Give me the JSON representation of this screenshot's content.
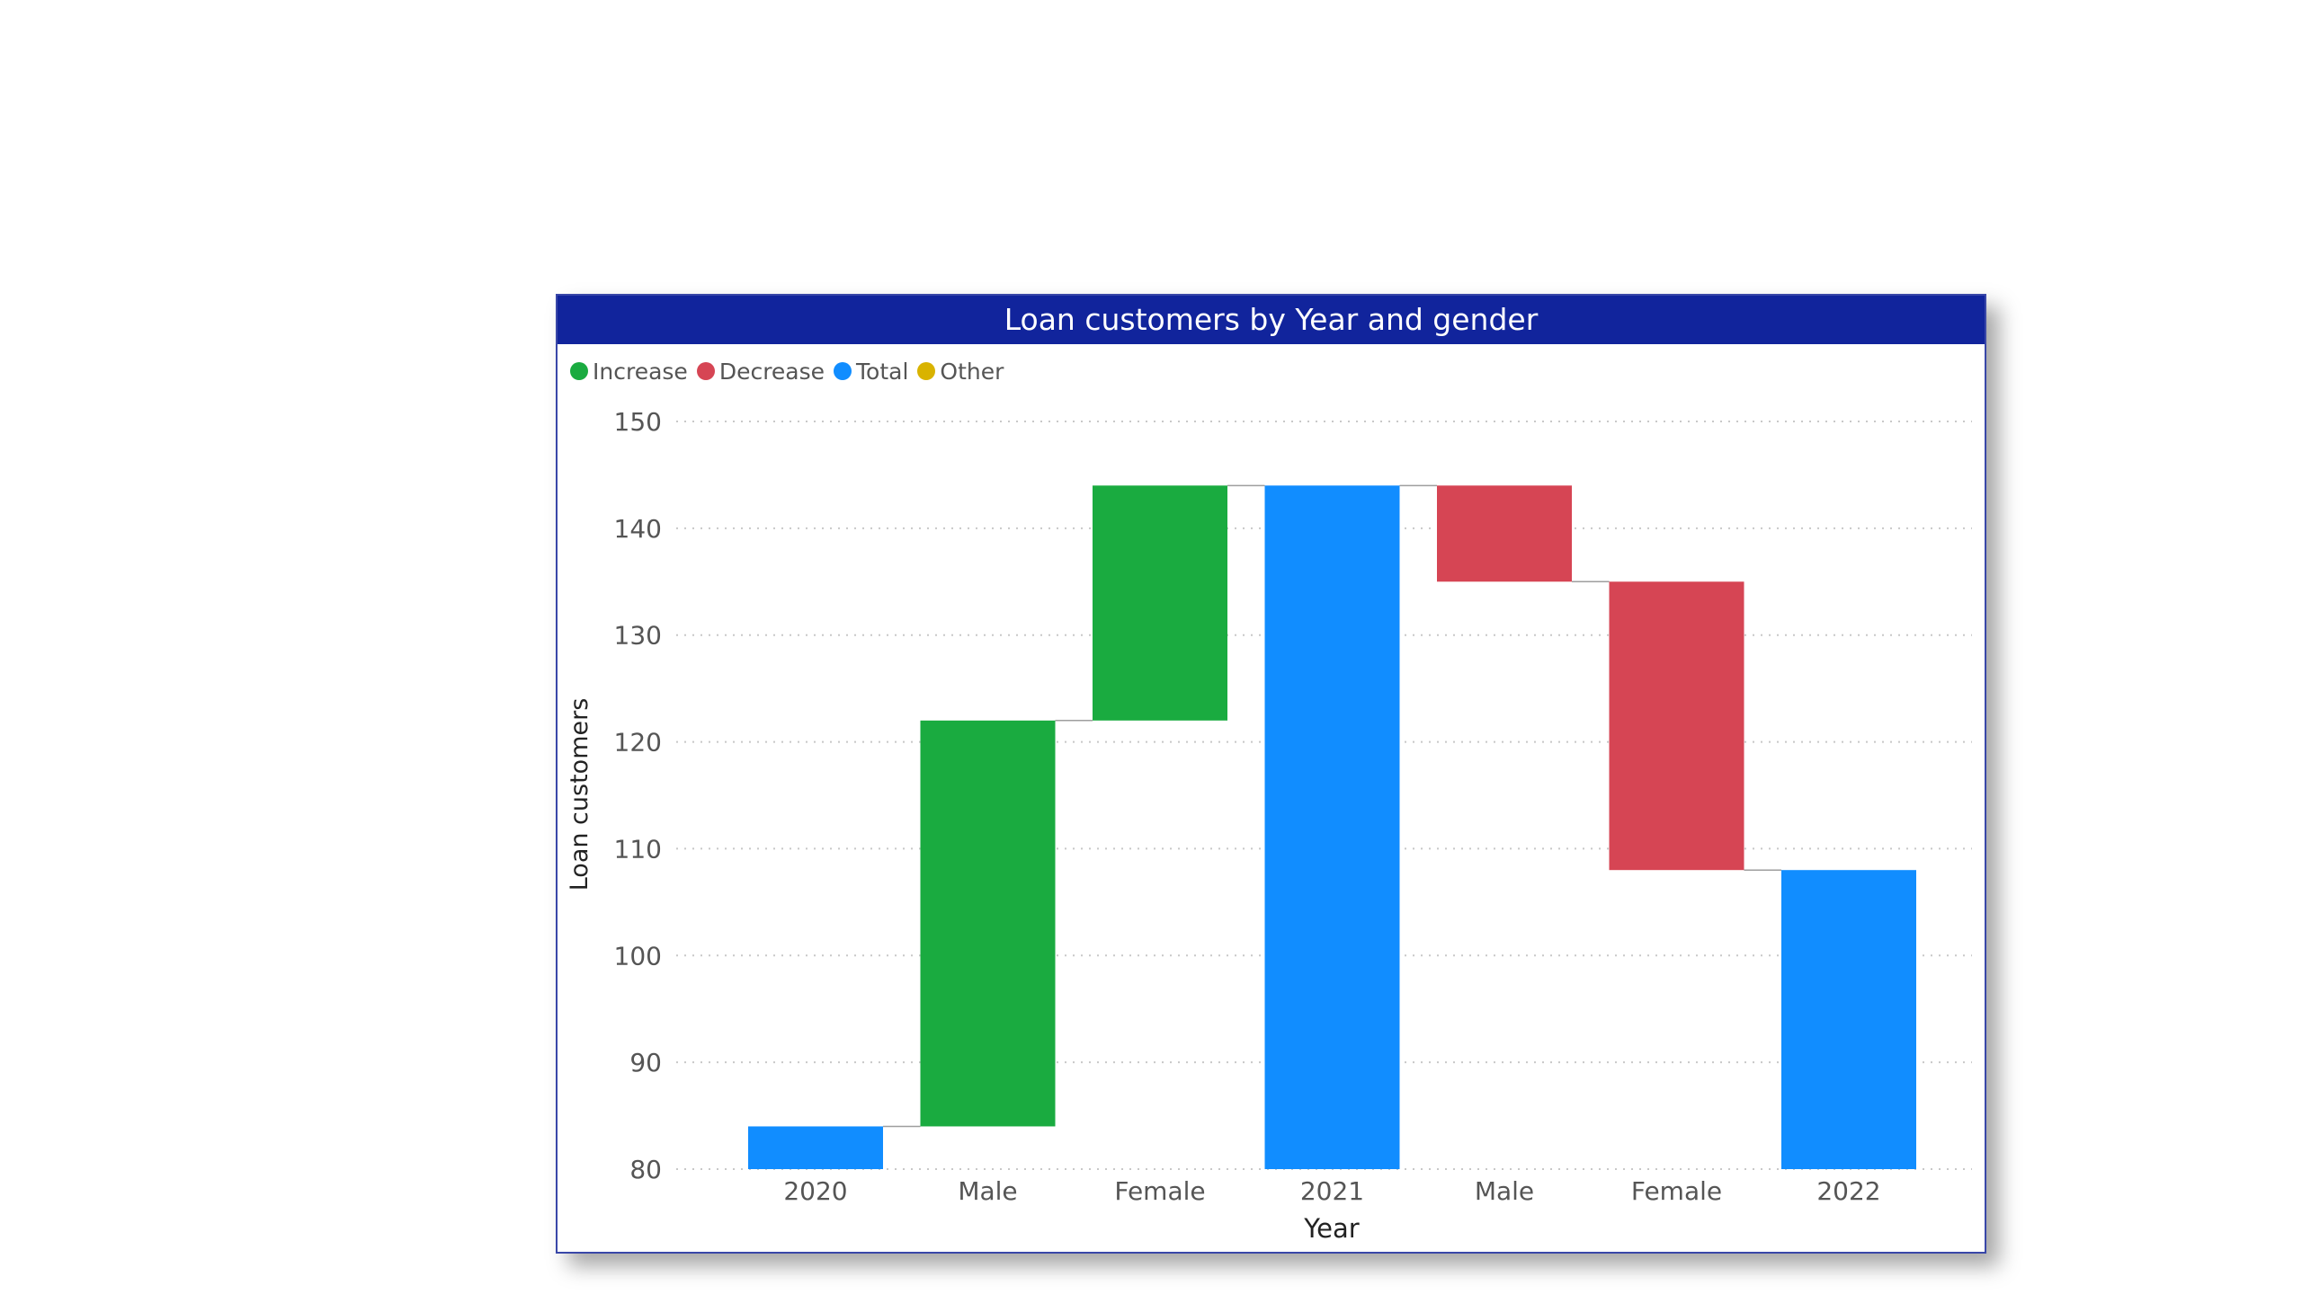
{
  "chart_data": {
    "type": "waterfall",
    "title": "Loan customers by Year and gender",
    "xlabel": "Year",
    "ylabel": "Loan customers",
    "ylim": [
      80,
      150
    ],
    "yticks": [
      "150",
      "140",
      "130",
      "120",
      "110",
      "100",
      "90",
      "80"
    ],
    "grid": true,
    "legend_position": "top-left",
    "legend": [
      {
        "label": "Increase",
        "color": "#1aab40"
      },
      {
        "label": "Decrease",
        "color": "#d64554"
      },
      {
        "label": "Total",
        "color": "#118dff"
      },
      {
        "label": "Other",
        "color": "#d9b300"
      }
    ],
    "categories": [
      "2020",
      "Male",
      "Female",
      "2021",
      "Male",
      "Female",
      "2022"
    ],
    "bars": [
      {
        "category": "2020",
        "kind": "total",
        "start": 80,
        "end": 84
      },
      {
        "category": "Male",
        "kind": "increase",
        "start": 84,
        "end": 122
      },
      {
        "category": "Female",
        "kind": "increase",
        "start": 122,
        "end": 144
      },
      {
        "category": "2021",
        "kind": "total",
        "start": 80,
        "end": 144
      },
      {
        "category": "Male",
        "kind": "decrease",
        "start": 144,
        "end": 135
      },
      {
        "category": "Female",
        "kind": "decrease",
        "start": 135,
        "end": 108
      },
      {
        "category": "2022",
        "kind": "total",
        "start": 80,
        "end": 108
      }
    ],
    "colors": {
      "increase": "#1aab40",
      "decrease": "#d64554",
      "total": "#118dff",
      "other": "#d9b300"
    }
  }
}
